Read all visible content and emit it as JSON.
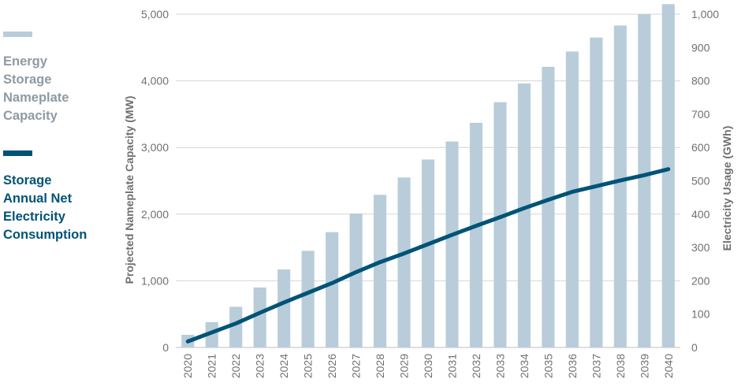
{
  "legend": {
    "bars_label": "Energy\nStorage\nNameplate\nCapacity",
    "line_label": "Storage\nAnnual Net\nElectricity\nConsumption"
  },
  "colors": {
    "bar": "#b8cdd9",
    "line": "#005377",
    "bar_legend_text": "#8d9aa3",
    "axis_text": "#707070",
    "grid": "#d4d4d4"
  },
  "chart_data": {
    "type": "bar",
    "title": "",
    "xlabel": "",
    "ylabel": "Projected Nameplate Capacity (MW)",
    "y2label": "Electricity Usage (GWh)",
    "categories": [
      "2020",
      "2021",
      "2022",
      "2023",
      "2024",
      "2025",
      "2026",
      "2027",
      "2028",
      "2029",
      "2030",
      "2031",
      "2032",
      "2033",
      "2034",
      "2035",
      "2036",
      "2037",
      "2038",
      "2039",
      "2040"
    ],
    "ylim": [
      0,
      5000
    ],
    "yticks": [
      0,
      1000,
      2000,
      3000,
      4000,
      5000
    ],
    "ytick_labels": [
      "0",
      "1,000",
      "2,000",
      "3,000",
      "4,000",
      "5,000"
    ],
    "y2lim": [
      0,
      1000
    ],
    "y2ticks": [
      0,
      100,
      200,
      300,
      400,
      500,
      600,
      700,
      800,
      900,
      1000
    ],
    "y2tick_labels": [
      "0",
      "100",
      "200",
      "300",
      "400",
      "500",
      "600",
      "700",
      "800",
      "900",
      "1,000"
    ],
    "grid": true,
    "series": [
      {
        "axis": "left",
        "type": "bar",
        "values": [
          190,
          380,
          610,
          900,
          1170,
          1450,
          1730,
          2010,
          2290,
          2550,
          2820,
          3090,
          3370,
          3680,
          3960,
          4210,
          4440,
          4650,
          4830,
          5000,
          5150
        ]
      },
      {
        "axis": "right",
        "type": "line",
        "values": [
          18,
          45,
          72,
          104,
          135,
          164,
          193,
          226,
          256,
          282,
          310,
          338,
          365,
          391,
          418,
          443,
          467,
          484,
          501,
          517,
          535
        ]
      }
    ]
  }
}
